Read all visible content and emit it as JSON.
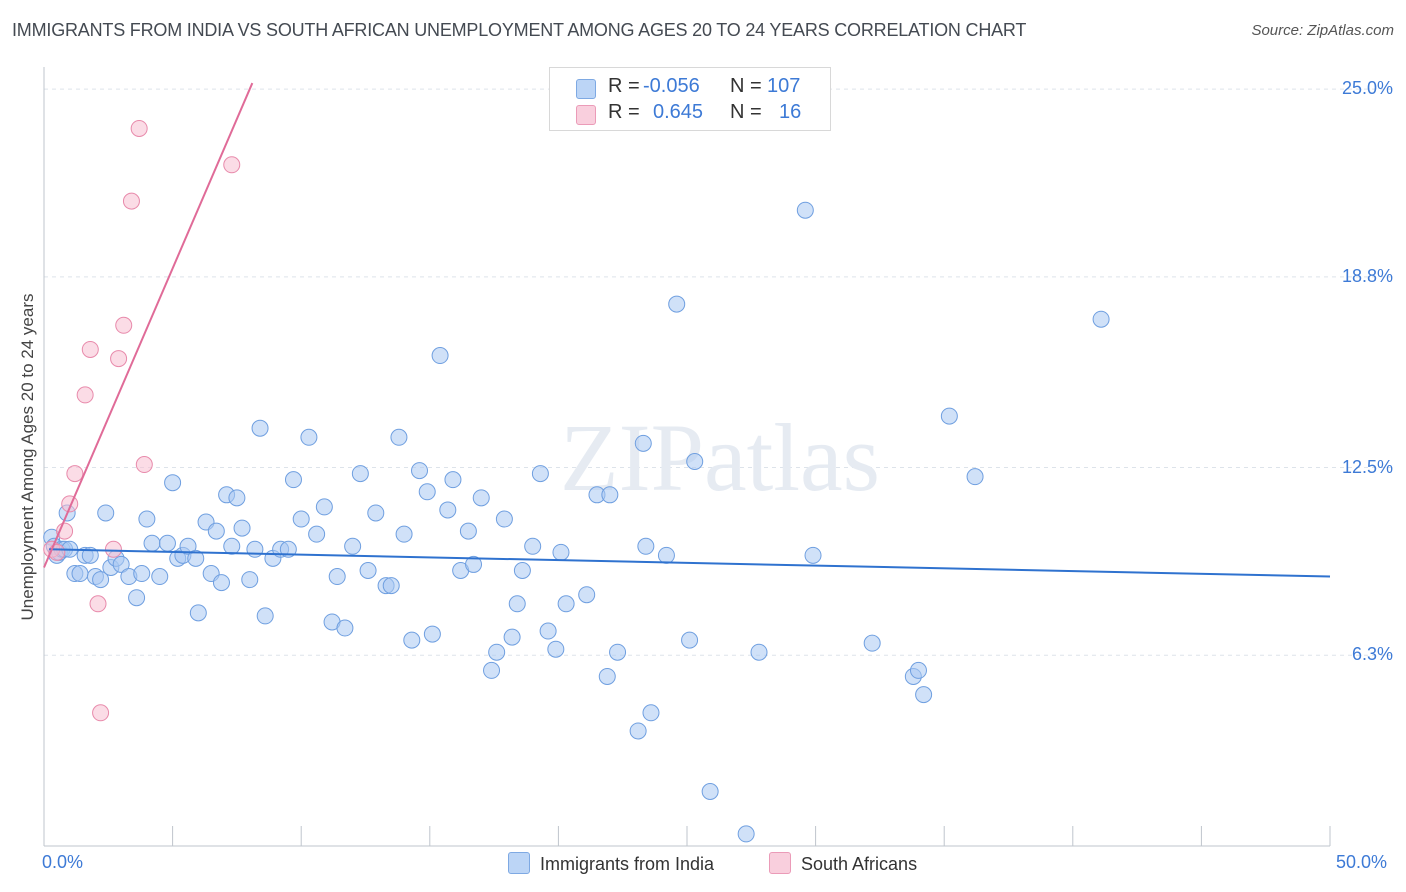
{
  "chart_data": {
    "type": "scatter",
    "title": "IMMIGRANTS FROM INDIA VS SOUTH AFRICAN UNEMPLOYMENT AMONG AGES 20 TO 24 YEARS CORRELATION CHART",
    "source": "Source: ZipAtlas.com",
    "xlabel": "",
    "ylabel": "Unemployment Among Ages 20 to 24 years",
    "xlim": [
      0,
      50
    ],
    "ylim": [
      0,
      25.4
    ],
    "x_tick_labels": [
      "0.0%",
      "50.0%"
    ],
    "y_ticks": [
      6.3,
      12.5,
      18.8,
      25.0
    ],
    "y_tick_labels": [
      "6.3%",
      "12.5%",
      "18.8%",
      "25.0%"
    ],
    "grid": true,
    "watermark": "ZIPatlas",
    "legend": {
      "rows": [
        {
          "r_label": "R =",
          "r_value": "-0.056",
          "n_label": "N =",
          "n_value": "107"
        },
        {
          "r_label": "R =",
          "r_value": "0.645",
          "n_label": "N =",
          "n_value": "16"
        }
      ]
    },
    "series": [
      {
        "name": "Immigrants from India",
        "color": "#a9c8f3",
        "stroke": "#6f9fe0",
        "trend_color": "#2f72cf",
        "r": -0.056,
        "n": 107,
        "trend": [
          [
            0.2,
            9.8
          ],
          [
            50,
            8.9
          ]
        ],
        "points": [
          [
            0.3,
            10.2
          ],
          [
            0.4,
            9.9
          ],
          [
            0.5,
            9.6
          ],
          [
            0.6,
            9.7
          ],
          [
            0.7,
            9.8
          ],
          [
            0.8,
            9.8
          ],
          [
            0.9,
            11.0
          ],
          [
            1.0,
            9.8
          ],
          [
            1.2,
            9.0
          ],
          [
            1.4,
            9.0
          ],
          [
            1.6,
            9.6
          ],
          [
            1.8,
            9.6
          ],
          [
            2.0,
            8.9
          ],
          [
            2.2,
            8.8
          ],
          [
            2.4,
            11.0
          ],
          [
            2.6,
            9.2
          ],
          [
            2.8,
            9.5
          ],
          [
            3.0,
            9.3
          ],
          [
            3.3,
            8.9
          ],
          [
            3.6,
            8.2
          ],
          [
            3.8,
            9.0
          ],
          [
            4.0,
            10.8
          ],
          [
            4.2,
            10.0
          ],
          [
            4.5,
            8.9
          ],
          [
            4.8,
            10.0
          ],
          [
            5.0,
            12.0
          ],
          [
            5.2,
            9.5
          ],
          [
            5.4,
            9.6
          ],
          [
            5.6,
            9.9
          ],
          [
            5.9,
            9.5
          ],
          [
            6.0,
            7.7
          ],
          [
            6.3,
            10.7
          ],
          [
            6.5,
            9.0
          ],
          [
            6.7,
            10.4
          ],
          [
            6.9,
            8.7
          ],
          [
            7.1,
            11.6
          ],
          [
            7.3,
            9.9
          ],
          [
            7.5,
            11.5
          ],
          [
            7.7,
            10.5
          ],
          [
            8.0,
            8.8
          ],
          [
            8.2,
            9.8
          ],
          [
            8.4,
            13.8
          ],
          [
            8.6,
            7.6
          ],
          [
            8.9,
            9.5
          ],
          [
            9.2,
            9.8
          ],
          [
            9.5,
            9.8
          ],
          [
            9.7,
            12.1
          ],
          [
            10.0,
            10.8
          ],
          [
            10.3,
            13.5
          ],
          [
            10.6,
            10.3
          ],
          [
            10.9,
            11.2
          ],
          [
            11.2,
            7.4
          ],
          [
            11.4,
            8.9
          ],
          [
            11.7,
            7.2
          ],
          [
            12.0,
            9.9
          ],
          [
            12.3,
            12.3
          ],
          [
            12.6,
            9.1
          ],
          [
            12.9,
            11.0
          ],
          [
            13.3,
            8.6
          ],
          [
            13.5,
            8.6
          ],
          [
            13.8,
            13.5
          ],
          [
            14.0,
            10.3
          ],
          [
            14.3,
            6.8
          ],
          [
            14.6,
            12.4
          ],
          [
            14.9,
            11.7
          ],
          [
            15.1,
            7.0
          ],
          [
            15.4,
            16.2
          ],
          [
            15.7,
            11.1
          ],
          [
            15.9,
            12.1
          ],
          [
            16.2,
            9.1
          ],
          [
            16.5,
            10.4
          ],
          [
            16.7,
            9.3
          ],
          [
            17.0,
            11.5
          ],
          [
            17.4,
            5.8
          ],
          [
            17.6,
            6.4
          ],
          [
            17.9,
            10.8
          ],
          [
            18.2,
            6.9
          ],
          [
            18.4,
            8.0
          ],
          [
            18.6,
            9.1
          ],
          [
            19.0,
            9.9
          ],
          [
            19.3,
            12.3
          ],
          [
            19.6,
            7.1
          ],
          [
            19.9,
            6.5
          ],
          [
            20.1,
            9.7
          ],
          [
            20.3,
            8.0
          ],
          [
            21.1,
            8.3
          ],
          [
            21.5,
            11.6
          ],
          [
            21.9,
            5.6
          ],
          [
            22.0,
            11.6
          ],
          [
            22.3,
            6.4
          ],
          [
            23.1,
            3.8
          ],
          [
            23.3,
            13.3
          ],
          [
            23.4,
            9.9
          ],
          [
            23.6,
            4.4
          ],
          [
            24.2,
            9.6
          ],
          [
            24.6,
            17.9
          ],
          [
            25.1,
            6.8
          ],
          [
            25.3,
            12.7
          ],
          [
            25.9,
            1.8
          ],
          [
            27.3,
            0.4
          ],
          [
            27.8,
            6.4
          ],
          [
            29.6,
            21.0
          ],
          [
            29.9,
            9.6
          ],
          [
            32.2,
            6.7
          ],
          [
            33.8,
            5.6
          ],
          [
            34.0,
            5.8
          ],
          [
            34.2,
            5.0
          ],
          [
            35.2,
            14.2
          ],
          [
            36.2,
            12.2
          ],
          [
            41.1,
            17.4
          ]
        ]
      },
      {
        "name": "South Africans",
        "color": "#f7c0d2",
        "stroke": "#e88aab",
        "trend_color": "#e06b98",
        "r": 0.645,
        "n": 16,
        "trend": [
          [
            0,
            9.2
          ],
          [
            8.1,
            25.2
          ]
        ],
        "points": [
          [
            0.3,
            9.8
          ],
          [
            0.8,
            10.4
          ],
          [
            1.0,
            11.3
          ],
          [
            1.2,
            12.3
          ],
          [
            1.6,
            14.9
          ],
          [
            1.8,
            16.4
          ],
          [
            2.1,
            8.0
          ],
          [
            2.2,
            4.4
          ],
          [
            2.7,
            9.8
          ],
          [
            2.9,
            16.1
          ],
          [
            3.1,
            17.2
          ],
          [
            3.4,
            21.3
          ],
          [
            3.7,
            23.7
          ],
          [
            3.9,
            12.6
          ],
          [
            7.3,
            22.5
          ],
          [
            0.5,
            9.7
          ]
        ]
      }
    ]
  }
}
